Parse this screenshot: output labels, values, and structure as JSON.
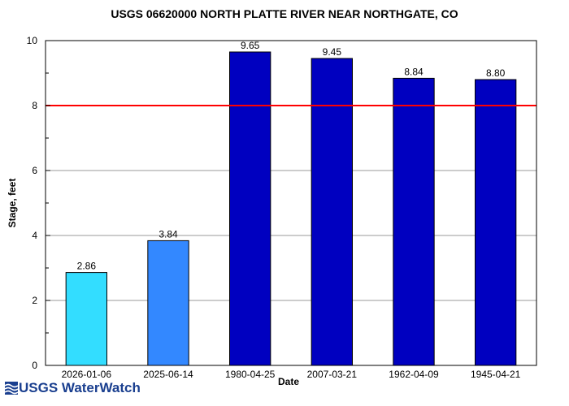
{
  "chart_data": {
    "type": "bar",
    "title": "USGS 06620000 NORTH PLATTE RIVER NEAR NORTHGATE, CO",
    "xlabel": "Date",
    "ylabel": "Stage, feet",
    "ylim": [
      0,
      10
    ],
    "yticks": [
      0,
      2,
      4,
      6,
      8,
      10
    ],
    "grid": true,
    "categories": [
      "2026-01-06",
      "2025-06-14",
      "1980-04-25",
      "2007-03-21",
      "1962-04-09",
      "1945-04-21"
    ],
    "values": [
      2.86,
      3.84,
      9.65,
      9.45,
      8.84,
      8.8
    ],
    "value_labels": [
      "2.86",
      "3.84",
      "9.65",
      "9.45",
      "8.84",
      "8.80"
    ],
    "colors": [
      "#33ddff",
      "#3388ff",
      "#0000c0",
      "#0000c0",
      "#0000c0",
      "#0000c0"
    ],
    "reference_line": {
      "value": 8,
      "color": "#ff0000"
    }
  },
  "footer": {
    "logo_text": "USGS WaterWatch",
    "logo_color": "#1a3f8f"
  }
}
